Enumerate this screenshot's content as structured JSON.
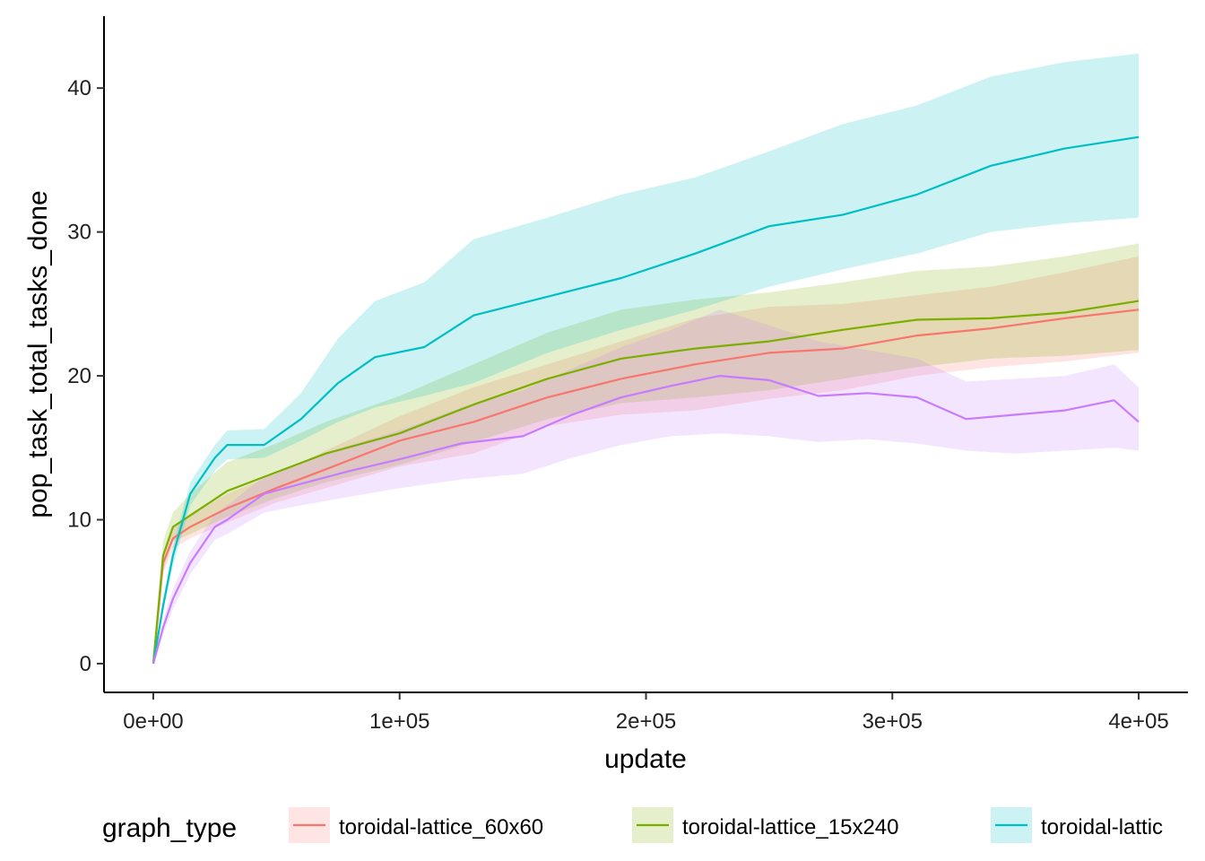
{
  "chart_data": {
    "type": "line",
    "title": "",
    "xlabel": "update",
    "ylabel": "pop_task_total_tasks_done",
    "xlim": [
      -20000,
      420000
    ],
    "ylim": [
      -2,
      45
    ],
    "x_ticks": [
      0,
      100000,
      200000,
      300000,
      400000
    ],
    "x_tick_labels": [
      "0e+00",
      "1e+05",
      "2e+05",
      "3e+05",
      "4e+05"
    ],
    "y_ticks": [
      0,
      10,
      20,
      30,
      40
    ],
    "y_tick_labels": [
      "0",
      "10",
      "20",
      "30",
      "40"
    ],
    "grid": false,
    "legend": {
      "title": "graph_type",
      "placement": "bottom",
      "entries": [
        "toroidal-lattice_60x60",
        "toroidal-lattice_15x240",
        "toroidal-lattic"
      ]
    },
    "series": [
      {
        "name": "toroidal-lattice_60x60",
        "color": "#F8766D",
        "x": [
          0,
          4000,
          8000,
          15000,
          30000,
          50000,
          70000,
          100000,
          130000,
          160000,
          190000,
          220000,
          250000,
          280000,
          310000,
          340000,
          370000,
          400000
        ],
        "y": [
          0,
          7,
          8.7,
          9.5,
          10.8,
          12.2,
          13.5,
          15.5,
          16.8,
          18.5,
          19.8,
          20.8,
          21.6,
          21.9,
          22.8,
          23.3,
          24,
          24.6
        ],
        "lower": [
          0,
          6.3,
          8,
          8.7,
          9.8,
          11.2,
          12.2,
          13.7,
          14.6,
          16.5,
          17.3,
          17.6,
          18.4,
          19,
          20,
          20.6,
          21,
          21.6
        ],
        "upper": [
          0,
          7.7,
          9.4,
          10.3,
          11.8,
          13.2,
          14.8,
          17.2,
          19.2,
          20.8,
          22.4,
          24,
          24.8,
          25,
          25.6,
          26.2,
          27.2,
          28.3
        ]
      },
      {
        "name": "toroidal-lattice_15x240",
        "color": "#7CAE00",
        "x": [
          0,
          4000,
          8000,
          15000,
          30000,
          50000,
          70000,
          100000,
          130000,
          160000,
          190000,
          220000,
          250000,
          280000,
          310000,
          340000,
          370000,
          400000
        ],
        "y": [
          0,
          7.5,
          9.5,
          10.3,
          12,
          13.3,
          14.6,
          16,
          18,
          19.8,
          21.2,
          21.9,
          22.4,
          23.2,
          23.9,
          24,
          24.4,
          25.2
        ],
        "lower": [
          0,
          6.5,
          8.5,
          9,
          10.2,
          11.5,
          12.6,
          13.8,
          15.4,
          17,
          18.1,
          18.5,
          19,
          19.8,
          20.6,
          21.2,
          21.4,
          21.8
        ],
        "upper": [
          0,
          8.5,
          10.5,
          11.8,
          14,
          15.3,
          16.8,
          18.6,
          20.8,
          23,
          24.6,
          25.3,
          25.8,
          26.5,
          27.3,
          27.6,
          28.3,
          29.2
        ]
      },
      {
        "name": "toroidal-lattic",
        "color": "#00BFC4",
        "x": [
          0,
          4000,
          8000,
          15000,
          25000,
          30000,
          45000,
          60000,
          75000,
          90000,
          110000,
          130000,
          160000,
          190000,
          220000,
          250000,
          280000,
          310000,
          340000,
          370000,
          400000
        ],
        "y": [
          0,
          4,
          7.5,
          11.8,
          14.3,
          15.2,
          15.2,
          17,
          19.5,
          21.3,
          22,
          24.2,
          25.5,
          26.8,
          28.5,
          30.4,
          31.2,
          32.6,
          34.6,
          35.8,
          36.6
        ],
        "lower": [
          0,
          3.5,
          6.8,
          11,
          13.4,
          14.2,
          14.3,
          15.5,
          16.8,
          17.8,
          18.6,
          19.5,
          21.6,
          23.2,
          24.6,
          26.2,
          27.4,
          28.5,
          30,
          30.6,
          31
        ],
        "upper": [
          0,
          4.5,
          8.2,
          12.6,
          15.2,
          16.2,
          16.3,
          18.8,
          22.6,
          25.2,
          26.5,
          29.5,
          31,
          32.6,
          33.8,
          35.6,
          37.5,
          38.8,
          40.8,
          41.8,
          42.4
        ]
      },
      {
        "name": "",
        "color": "#C77CFF",
        "x": [
          0,
          4000,
          8000,
          15000,
          25000,
          30000,
          45000,
          60000,
          80000,
          100000,
          125000,
          150000,
          170000,
          190000,
          210000,
          230000,
          250000,
          270000,
          290000,
          310000,
          330000,
          350000,
          370000,
          390000,
          400000
        ],
        "y": [
          0,
          2.5,
          4.5,
          7,
          9.5,
          10,
          11.8,
          12.5,
          13.4,
          14.2,
          15.3,
          15.8,
          17.3,
          18.5,
          19.3,
          20,
          19.7,
          18.6,
          18.8,
          18.5,
          17,
          17.3,
          17.6,
          18.3,
          16.8
        ],
        "lower": [
          0,
          2,
          3.8,
          6.2,
          8.6,
          9,
          10.5,
          11,
          11.6,
          12.2,
          12.8,
          13.2,
          14.3,
          15.2,
          15.8,
          16,
          15.8,
          15.4,
          15.6,
          15.3,
          14.8,
          14.6,
          14.8,
          15,
          14.8
        ],
        "upper": [
          0,
          3,
          5.2,
          7.8,
          10.4,
          11,
          13,
          14,
          15.2,
          16.2,
          17.8,
          19,
          20.5,
          22,
          23.2,
          24.6,
          23.5,
          22.4,
          21.8,
          21.2,
          19.6,
          19.8,
          20,
          20.8,
          19.2
        ]
      }
    ]
  }
}
